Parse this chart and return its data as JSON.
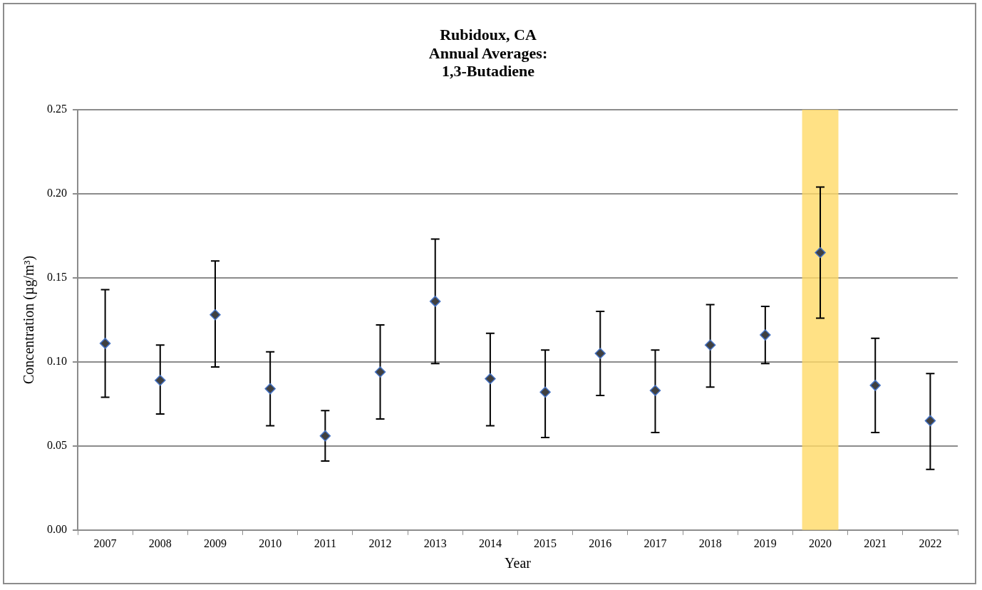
{
  "chart_data": {
    "type": "scatter",
    "title": "Rubidoux, CA\nAnnual Averages:\n1,3-Butadiene",
    "xlabel": "Year",
    "ylabel": "Concentration (µg/m³)",
    "categories": [
      "2007",
      "2008",
      "2009",
      "2010",
      "2011",
      "2012",
      "2013",
      "2014",
      "2015",
      "2016",
      "2017",
      "2018",
      "2019",
      "2020",
      "2021",
      "2022"
    ],
    "series": [
      {
        "color": "#404040",
        "values": [
          0.111,
          0.089,
          0.128,
          0.084,
          0.056,
          0.094,
          0.136,
          0.09,
          0.082,
          0.105,
          0.083,
          0.11,
          0.116,
          0.165,
          0.086,
          0.065
        ],
        "errors": [
          [
            0.079,
            0.143
          ],
          [
            0.069,
            0.11
          ],
          [
            0.097,
            0.16
          ],
          [
            0.062,
            0.106
          ],
          [
            0.041,
            0.071
          ],
          [
            0.066,
            0.122
          ],
          [
            0.099,
            0.173
          ],
          [
            0.062,
            0.117
          ],
          [
            0.055,
            0.107
          ],
          [
            0.08,
            0.13
          ],
          [
            0.058,
            0.107
          ],
          [
            0.085,
            0.134
          ],
          [
            0.099,
            0.133
          ],
          [
            0.126,
            0.204
          ],
          [
            0.058,
            0.114
          ],
          [
            0.036,
            0.093
          ]
        ]
      }
    ],
    "ylim": [
      0,
      0.25
    ],
    "yticks": [
      {
        "value": 0,
        "label": "0.00"
      },
      0.05,
      {
        "value": 0.1,
        "label": "0.10"
      },
      0.15,
      {
        "value": 0.2,
        "label": "0.20"
      },
      0.25
    ],
    "bands": [
      {
        "axis": "x",
        "from": "2020",
        "to": "2020",
        "color": "#ffd966"
      }
    ],
    "grid": "y",
    "marker": "diamond",
    "legend": false
  }
}
